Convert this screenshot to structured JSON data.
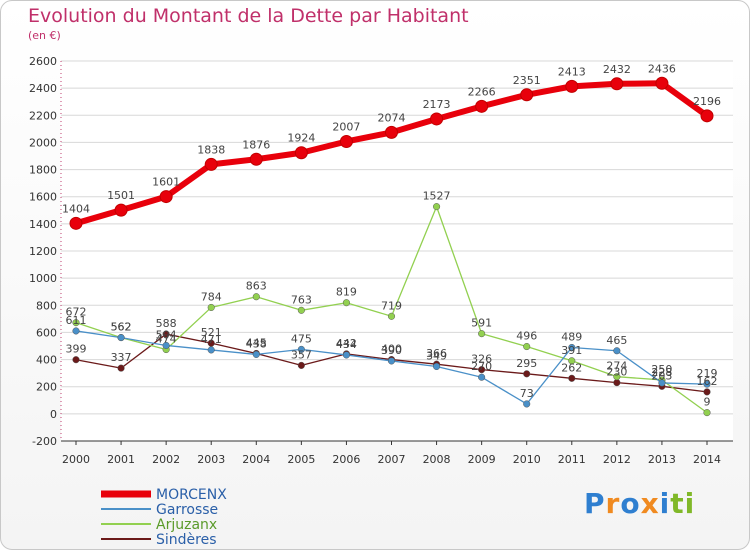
{
  "title": "Evolution du Montant de la Dette par Habitant",
  "subtitle": "(en €)",
  "logo": {
    "text": "Proxiti",
    "colors": [
      "#2f7fd0",
      "#f08a20",
      "#2f7fd0",
      "#f08a20",
      "#2f7fd0",
      "#80b828",
      "#80b828"
    ]
  },
  "chart_data": {
    "type": "line",
    "title": "Evolution du Montant de la Dette par Habitant",
    "subtitle": "(en €)",
    "xlabel": "",
    "ylabel": "",
    "x": [
      "2000",
      "2001",
      "2002",
      "2003",
      "2004",
      "2005",
      "2006",
      "2007",
      "2008",
      "2009",
      "2010",
      "2011",
      "2012",
      "2013",
      "2014"
    ],
    "ylim": [
      -200,
      2600
    ],
    "yticks": [
      -200,
      0,
      200,
      400,
      600,
      800,
      1000,
      1200,
      1400,
      1600,
      1800,
      2000,
      2200,
      2400,
      2600
    ],
    "grid": "horizontal",
    "legend": "bottom-left",
    "series": [
      {
        "name": "MORCENX",
        "color": "#e8000b",
        "values": [
          1404,
          1501,
          1601,
          1838,
          1876,
          1924,
          2007,
          2074,
          2173,
          2266,
          2351,
          2413,
          2432,
          2436,
          2196
        ]
      },
      {
        "name": "Garrosse",
        "color": "#4a90c8",
        "values": [
          611,
          562,
          504,
          471,
          438,
          475,
          434,
          390,
          349,
          270,
          73,
          489,
          465,
          228,
          219
        ]
      },
      {
        "name": "Arjuzanx",
        "color": "#92d050",
        "values": [
          672,
          562,
          474,
          784,
          863,
          763,
          819,
          719,
          1527,
          591,
          496,
          391,
          274,
          250,
          9
        ]
      },
      {
        "name": "Sindères",
        "color": "#6b1a1a",
        "values": [
          399,
          337,
          588,
          521,
          445,
          357,
          442,
          400,
          366,
          326,
          295,
          262,
          230,
          203,
          162
        ]
      }
    ]
  }
}
